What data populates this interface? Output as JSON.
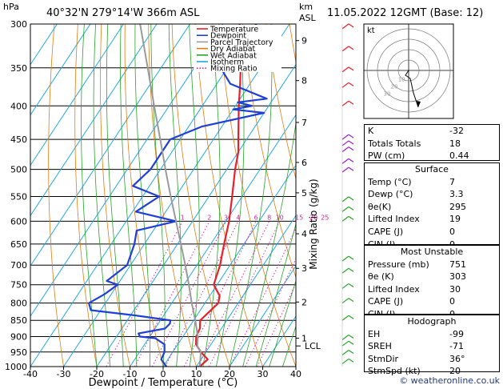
{
  "header": {
    "station": "40°32'N  279°14'W  366m  ASL",
    "datetime": "11.05.2022  12GMT  (Base: 12)",
    "y_unit": "hPa",
    "km_label": "km",
    "asl_label": "ASL"
  },
  "chart_data": {
    "type": "skew-t log-p",
    "xlabel": "Dewpoint / Temperature (°C)",
    "ylabel_right": "Mixing Ratio (g/kg)",
    "x_ticks": [
      -40,
      -30,
      -20,
      -10,
      0,
      10,
      20,
      30,
      40
    ],
    "pressure_levels": [
      300,
      350,
      400,
      450,
      500,
      550,
      600,
      650,
      700,
      750,
      800,
      850,
      900,
      950,
      1000
    ],
    "pressure_labels": [
      "300",
      "350",
      "400",
      "450",
      "500",
      "550",
      "600",
      "650",
      "700",
      "750",
      "800",
      "850",
      "900",
      "950",
      "1000"
    ],
    "x_tick_labels": [
      "-40",
      "-30",
      "-20",
      "-10",
      "0",
      "10",
      "20",
      "30",
      "40"
    ],
    "km_ticks": [
      {
        "p": 318,
        "label": "9"
      },
      {
        "p": 366,
        "label": "8"
      },
      {
        "p": 424,
        "label": "7"
      },
      {
        "p": 488,
        "label": "6"
      },
      {
        "p": 543,
        "label": "5"
      },
      {
        "p": 627,
        "label": "4"
      },
      {
        "p": 708,
        "label": "3"
      },
      {
        "p": 797,
        "label": "2"
      },
      {
        "p": 905,
        "label": "1"
      }
    ],
    "lcl_label": "LCL",
    "lcl_pressure": 930,
    "mixing_ratios": [
      "1",
      "2",
      "3",
      "4",
      "6",
      "8",
      "10",
      "15",
      "20",
      "25"
    ],
    "mixing_ratio_values": [
      1,
      2,
      3,
      4,
      6,
      8,
      10,
      15,
      20,
      25
    ],
    "legend": {
      "placement": "top-left",
      "items": [
        {
          "label": "Temperature",
          "color": "#e8202a",
          "style": "solid"
        },
        {
          "label": "Dewpoint",
          "color": "#1f3fd9",
          "style": "solid"
        },
        {
          "label": "Parcel Trajectory",
          "color": "#9a9a9a",
          "style": "solid"
        },
        {
          "label": "Dry Adiabat",
          "color": "#e07c10",
          "style": "solid"
        },
        {
          "label": "Wet Adiabat",
          "color": "#28a428",
          "style": "solid"
        },
        {
          "label": "Isotherm",
          "color": "#21a8e0",
          "style": "solid"
        },
        {
          "label": "Mixing Ratio",
          "color": "#d0209a",
          "style": "dotted"
        }
      ]
    },
    "series": [
      {
        "name": "Temperature",
        "color": "#e8202a",
        "points": [
          [
            1000,
            11
          ],
          [
            975,
            12
          ],
          [
            950,
            8.5
          ],
          [
            925,
            5.5
          ],
          [
            900,
            4
          ],
          [
            875,
            3.5
          ],
          [
            850,
            2
          ],
          [
            825,
            3
          ],
          [
            800,
            4
          ],
          [
            780,
            3
          ],
          [
            750,
            -1
          ],
          [
            700,
            -3
          ],
          [
            650,
            -6
          ],
          [
            600,
            -9
          ],
          [
            550,
            -13
          ],
          [
            500,
            -17.5
          ],
          [
            470,
            -20
          ],
          [
            450,
            -22.5
          ],
          [
            400,
            -29
          ],
          [
            370,
            -33
          ],
          [
            350,
            -36
          ],
          [
            325,
            -41
          ],
          [
            300,
            -45
          ]
        ]
      },
      {
        "name": "Dewpoint",
        "color": "#1f3fd9",
        "points": [
          [
            1000,
            1
          ],
          [
            975,
            -2
          ],
          [
            950,
            -2.5
          ],
          [
            925,
            -4
          ],
          [
            905,
            -8
          ],
          [
            900,
            -13
          ],
          [
            890,
            -14
          ],
          [
            875,
            -7
          ],
          [
            860,
            -6.5
          ],
          [
            850,
            -7
          ],
          [
            835,
            -19
          ],
          [
            820,
            -33
          ],
          [
            800,
            -35
          ],
          [
            775,
            -32
          ],
          [
            750,
            -30
          ],
          [
            740,
            -34
          ],
          [
            700,
            -31
          ],
          [
            650,
            -33
          ],
          [
            620,
            -35
          ],
          [
            600,
            -25
          ],
          [
            580,
            -39
          ],
          [
            550,
            -35
          ],
          [
            530,
            -45
          ],
          [
            500,
            -43
          ],
          [
            450,
            -43
          ],
          [
            430,
            -36
          ],
          [
            410,
            -20
          ],
          [
            405,
            -30
          ],
          [
            400,
            -25
          ],
          [
            395,
            -30
          ],
          [
            390,
            -22
          ],
          [
            370,
            -36
          ],
          [
            350,
            -42
          ],
          [
            330,
            -40
          ],
          [
            300,
            -40
          ]
        ]
      },
      {
        "name": "Parcel Trajectory",
        "color": "#9a9a9a",
        "points": [
          [
            1000,
            11
          ],
          [
            950,
            8.5
          ],
          [
            930,
            6.2
          ],
          [
            900,
            4.5
          ],
          [
            850,
            0.5
          ],
          [
            800,
            -4
          ],
          [
            750,
            -8.5
          ],
          [
            700,
            -13.5
          ],
          [
            650,
            -19
          ],
          [
            600,
            -25
          ],
          [
            550,
            -31.5
          ],
          [
            500,
            -38.5
          ],
          [
            450,
            -46
          ],
          [
            400,
            -54.5
          ],
          [
            350,
            -64
          ],
          [
            300,
            -75
          ]
        ]
      }
    ]
  },
  "hodograph": {
    "label": "kt",
    "ring_labels": [
      "10",
      "20",
      "30"
    ]
  },
  "wind_barbs": {
    "color_upper": "#e8202a",
    "color_mid": "#9b1fc6",
    "color_low": "#28a428"
  },
  "indices": {
    "basic": [
      {
        "label": "K",
        "value": "-32"
      },
      {
        "label": "Totals Totals",
        "value": "18"
      },
      {
        "label": "PW (cm)",
        "value": "0.44"
      }
    ],
    "surface_title": "Surface",
    "surface": [
      {
        "label": "Temp (°C)",
        "value": "7"
      },
      {
        "label": "Dewp (°C)",
        "value": "3.3"
      },
      {
        "label": "θe(K)",
        "value": "295"
      },
      {
        "label": "Lifted Index",
        "value": "19"
      },
      {
        "label": "CAPE (J)",
        "value": "0"
      },
      {
        "label": "CIN (J)",
        "value": "0"
      }
    ],
    "mu_title": "Most Unstable",
    "most_unstable": [
      {
        "label": "Pressure (mb)",
        "value": "751"
      },
      {
        "label": "θe (K)",
        "value": "303"
      },
      {
        "label": "Lifted Index",
        "value": "30"
      },
      {
        "label": "CAPE (J)",
        "value": "0"
      },
      {
        "label": "CIN (J)",
        "value": "0"
      }
    ],
    "hodo_title": "Hodograph",
    "hodograph": [
      {
        "label": "EH",
        "value": "-99"
      },
      {
        "label": "SREH",
        "value": "-71"
      },
      {
        "label": "StmDir",
        "value": "36°"
      },
      {
        "label": "StmSpd (kt)",
        "value": "20"
      }
    ]
  },
  "copyright": "© weatheronline.co.uk"
}
